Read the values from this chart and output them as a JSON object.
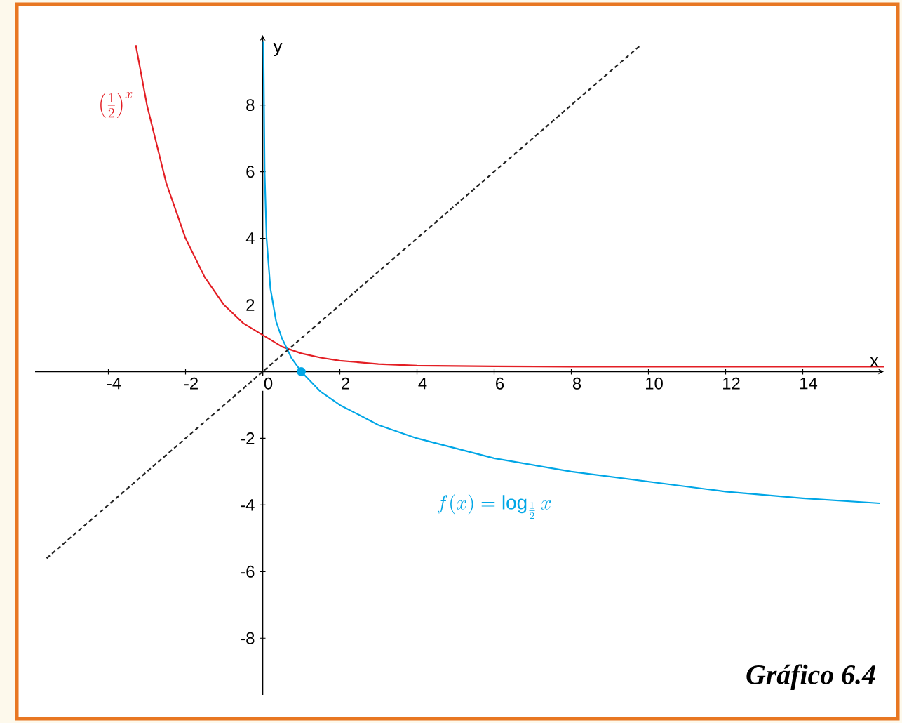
{
  "chart_data": {
    "type": "line",
    "xlabel": "x",
    "ylabel": "y",
    "xlim": [
      -5.9,
      16.1
    ],
    "ylim": [
      -9.7,
      10.1
    ],
    "xticks": [
      -4,
      -2,
      0,
      2,
      4,
      6,
      8,
      10,
      12,
      14
    ],
    "yticks": [
      -8,
      -6,
      -4,
      -2,
      2,
      4,
      6,
      8
    ],
    "grid": false,
    "marker": "none",
    "annotations": [
      "Gráfico 6.4"
    ],
    "series": [
      {
        "name": "\\left(\\frac{1}{2}\\right)^{x}",
        "color": "#e31e24",
        "x": [
          -3.29,
          -3,
          -2.5,
          -2,
          -1.5,
          -1,
          -0.5,
          0,
          0.5,
          1,
          1.5,
          2,
          3,
          4,
          6,
          8,
          10,
          12,
          14,
          16.1
        ],
        "values": [
          9.8,
          8,
          5.66,
          4,
          2.83,
          2,
          1.45,
          1.1,
          0.75,
          0.55,
          0.42,
          0.33,
          0.23,
          0.18,
          0.16,
          0.15,
          0.15,
          0.15,
          0.15,
          0.15
        ]
      },
      {
        "name": "f(x)=\\log_{\\frac{1}{2}}x",
        "color": "#00a6e6",
        "x": [
          0.02,
          0.05,
          0.1,
          0.2,
          0.35,
          0.5,
          0.75,
          1,
          1.5,
          2,
          3,
          4,
          6,
          8,
          10,
          12,
          14,
          16
        ],
        "values": [
          9.9,
          6,
          4,
          2.5,
          1.5,
          1,
          0.4,
          0,
          -0.6,
          -1,
          -1.6,
          -2,
          -2.6,
          -3,
          -3.3,
          -3.6,
          -3.8,
          -3.95
        ]
      },
      {
        "color": "#222222",
        "line_style": "dashed",
        "x": [
          -5.6,
          9.8
        ],
        "values": [
          -5.6,
          9.8
        ]
      },
      {
        "type": "scatter",
        "marker": "circle",
        "color": "#00a6e6",
        "x": [
          1
        ],
        "values": [
          0
        ]
      }
    ]
  }
}
